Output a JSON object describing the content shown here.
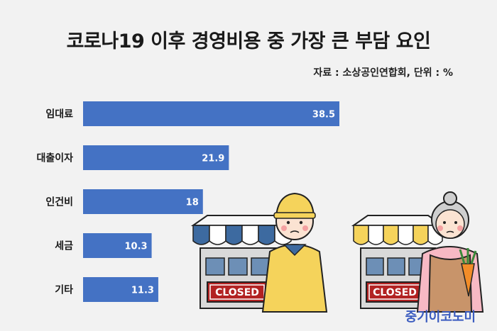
{
  "title": "코로나19 이후 경영비용 중 가장 큰 부담 요인",
  "source_note": "자료 : 소상공인연합회, 단위 : %",
  "brand": "중기이코노미",
  "illustration": {
    "sign_text": "CLOSED"
  },
  "colors": {
    "bar": "#4472c4",
    "closed_sign": "#b22222",
    "awning_blue": "#3d6aa0",
    "awning_yellow": "#f5d35b"
  },
  "chart_data": {
    "type": "bar",
    "orientation": "horizontal",
    "categories": [
      "임대료",
      "대출이자",
      "인건비",
      "세금",
      "기타"
    ],
    "values": [
      38.5,
      21.9,
      18,
      10.3,
      11.3
    ],
    "value_labels": [
      "38.5",
      "21.9",
      "18",
      "10.3",
      "11.3"
    ],
    "title": "코로나19 이후 경영비용 중 가장 큰 부담 요인",
    "unit": "%",
    "xlim": [
      0,
      40
    ],
    "grid": false,
    "legend": "none"
  }
}
